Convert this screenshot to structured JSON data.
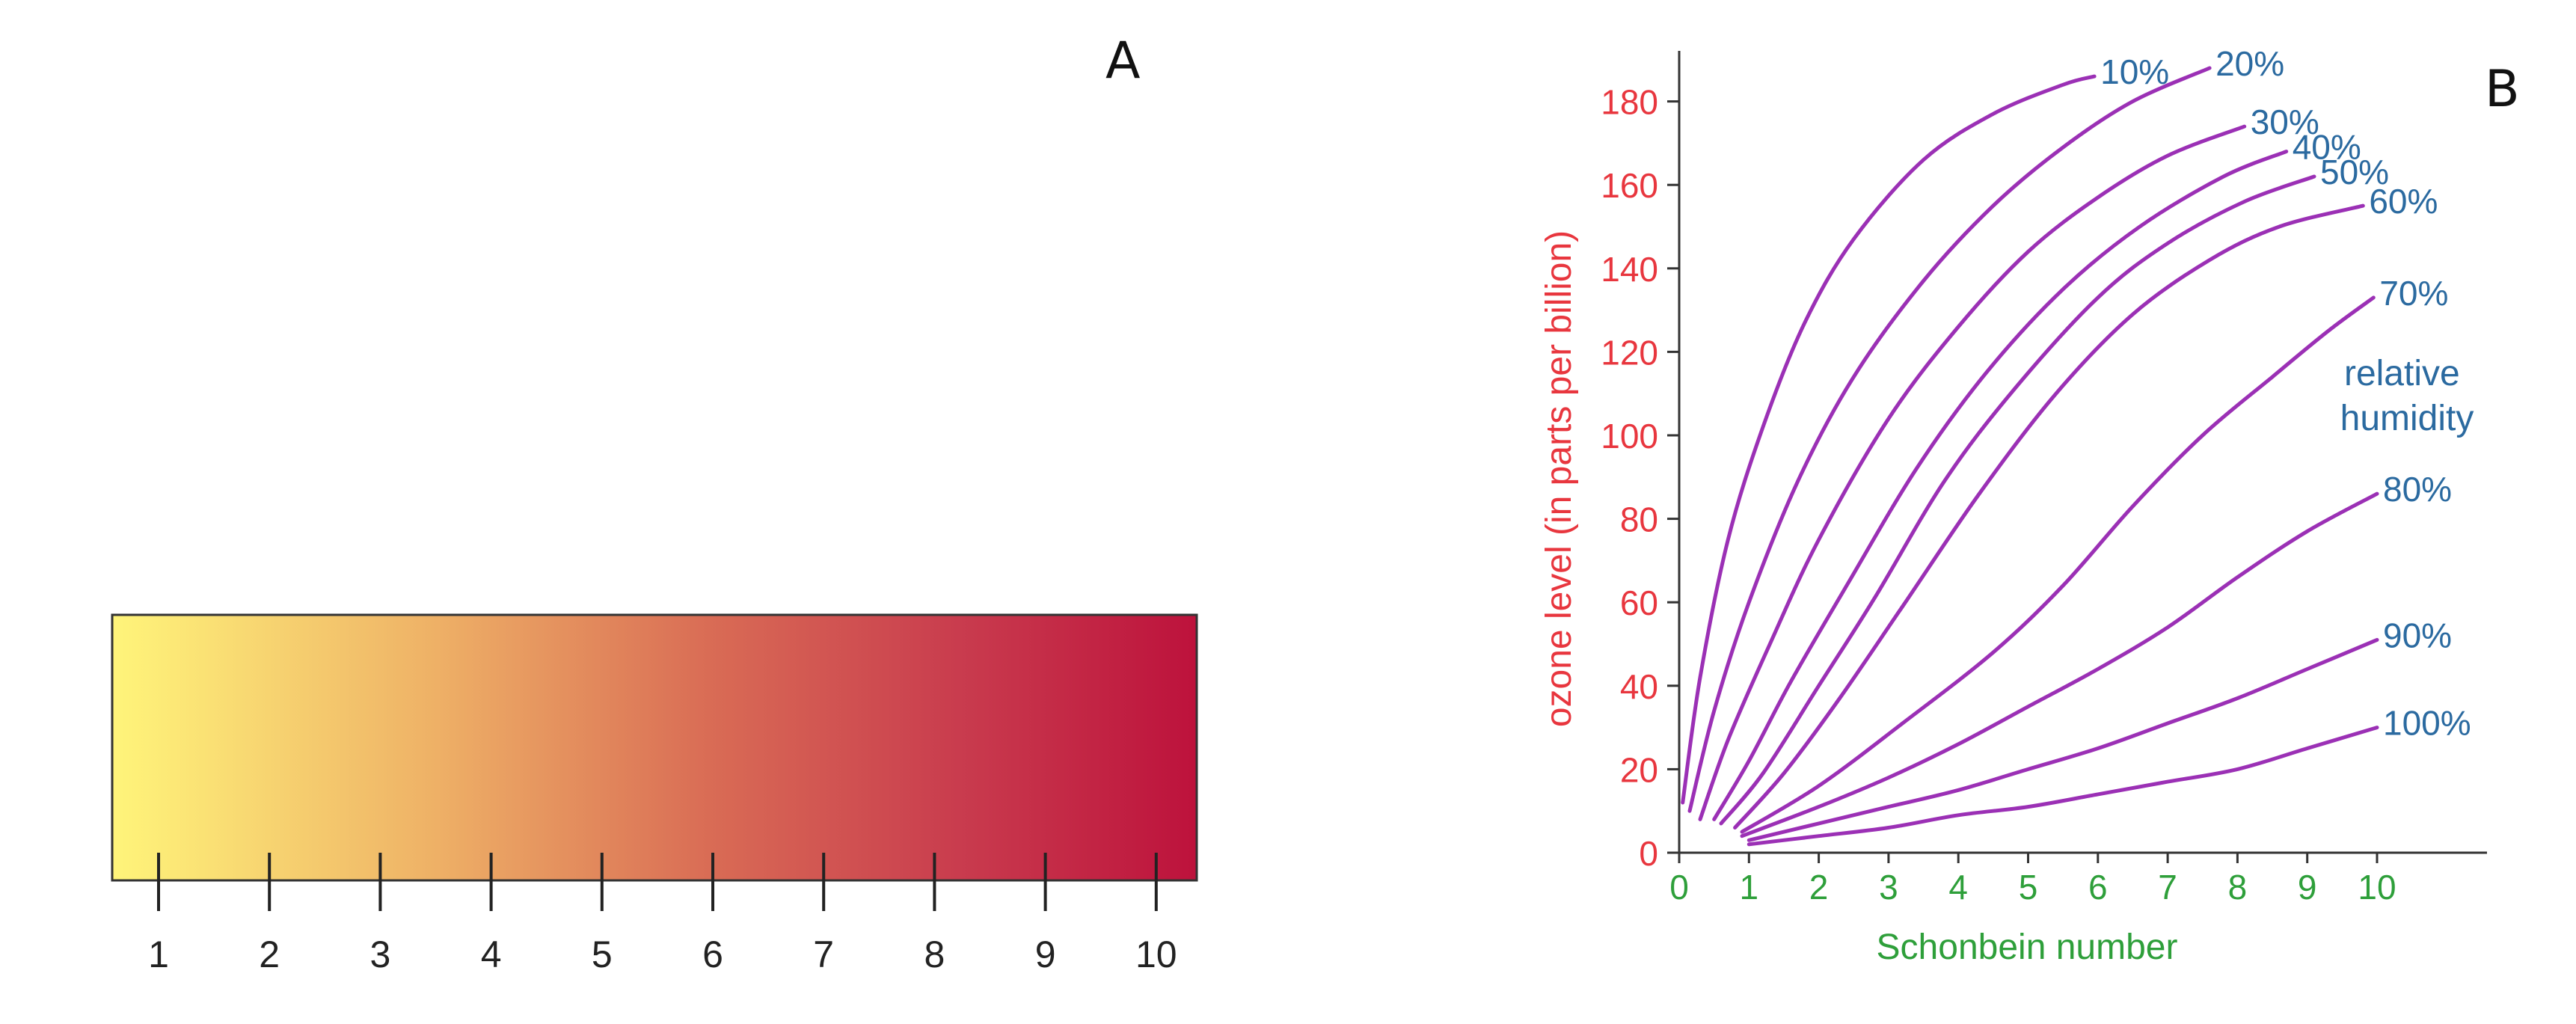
{
  "panels": {
    "a_label": "A",
    "b_label": "B"
  },
  "chart_data": [
    {
      "type": "color-scale",
      "title": "",
      "colors": {
        "start": "#fff57a",
        "mid1": "#eeb066",
        "mid2": "#d96c55",
        "mid3": "#c93c4e",
        "end": "#bd123c"
      },
      "ticks": [
        "1",
        "2",
        "3",
        "4",
        "5",
        "6",
        "7",
        "8",
        "9",
        "10"
      ]
    },
    {
      "type": "line",
      "title": "",
      "xlabel": "Schonbein number",
      "ylabel": "ozone level (in parts per billion)",
      "xlim": [
        0,
        10.4
      ],
      "ylim": [
        0,
        190
      ],
      "xticks": [
        "0",
        "1",
        "2",
        "3",
        "4",
        "5",
        "6",
        "7",
        "8",
        "9",
        "10"
      ],
      "yticks": [
        "0",
        "20",
        "40",
        "60",
        "80",
        "100",
        "120",
        "140",
        "160",
        "180"
      ],
      "legend_title": "relative humidity",
      "legend_title_lines": [
        "relative",
        "humidity"
      ],
      "colors": {
        "curve": "#9b30b5",
        "axis_x": "#2e9f3a",
        "axis_y": "#e8363e",
        "labels": "#2b6aa0",
        "axis_line": "#333333"
      },
      "series": [
        {
          "name": "10%",
          "x": [
            0.05,
            0.3,
            0.7,
            1.2,
            1.8,
            2.5,
            3.5,
            4.5,
            5.5,
            5.95
          ],
          "y": [
            12,
            42,
            75,
            102,
            127,
            147,
            166,
            177,
            184,
            186
          ]
        },
        {
          "name": "20%",
          "x": [
            0.15,
            0.5,
            1,
            1.7,
            2.5,
            3.5,
            4.5,
            5.5,
            6.5,
            7.6
          ],
          "y": [
            10,
            34,
            60,
            89,
            114,
            137,
            155,
            169,
            180,
            188
          ]
        },
        {
          "name": "30%",
          "x": [
            0.3,
            0.7,
            1.3,
            2,
            3,
            4,
            5,
            6,
            7,
            8.1
          ],
          "y": [
            8,
            27,
            50,
            75,
            104,
            126,
            144,
            157,
            167,
            174
          ]
        },
        {
          "name": "40%",
          "x": [
            0.5,
            1,
            1.6,
            2.4,
            3.4,
            4.4,
            5.5,
            6.6,
            7.8,
            8.7
          ],
          "y": [
            8,
            22,
            41,
            64,
            92,
            115,
            135,
            150,
            162,
            168
          ]
        },
        {
          "name": "50%",
          "x": [
            0.6,
            1.2,
            2,
            2.8,
            3.8,
            4.8,
            6,
            7,
            8.1,
            9.1
          ],
          "y": [
            7,
            19,
            40,
            61,
            89,
            111,
            133,
            146,
            156,
            162
          ]
        },
        {
          "name": "60%",
          "x": [
            0.8,
            1.5,
            2.3,
            3.2,
            4.3,
            5.4,
            6.5,
            7.6,
            8.6,
            9.8
          ],
          "y": [
            6,
            19,
            37,
            59,
            86,
            110,
            129,
            142,
            150,
            155
          ]
        },
        {
          "name": "70%",
          "x": [
            0.9,
            2,
            3.2,
            4.5,
            5.5,
            6.5,
            7.5,
            8.5,
            9.3,
            9.95
          ],
          "y": [
            5,
            16,
            31,
            48,
            64,
            83,
            100,
            114,
            125,
            133
          ]
        },
        {
          "name": "80%",
          "x": [
            0.9,
            2,
            3,
            4,
            5,
            6,
            7,
            8,
            9,
            10
          ],
          "y": [
            4,
            11,
            18,
            26,
            35,
            44,
            54,
            66,
            77,
            86
          ]
        },
        {
          "name": "90%",
          "x": [
            1,
            2,
            3,
            4,
            5,
            6,
            7,
            8,
            9,
            10
          ],
          "y": [
            3,
            7,
            11,
            15,
            20,
            25,
            31,
            37,
            44,
            51
          ]
        },
        {
          "name": "100%",
          "x": [
            1,
            2,
            3,
            4,
            5,
            6,
            7,
            8,
            9,
            10
          ],
          "y": [
            2,
            4,
            6,
            9,
            11,
            14,
            17,
            20,
            25,
            30
          ]
        }
      ]
    }
  ]
}
